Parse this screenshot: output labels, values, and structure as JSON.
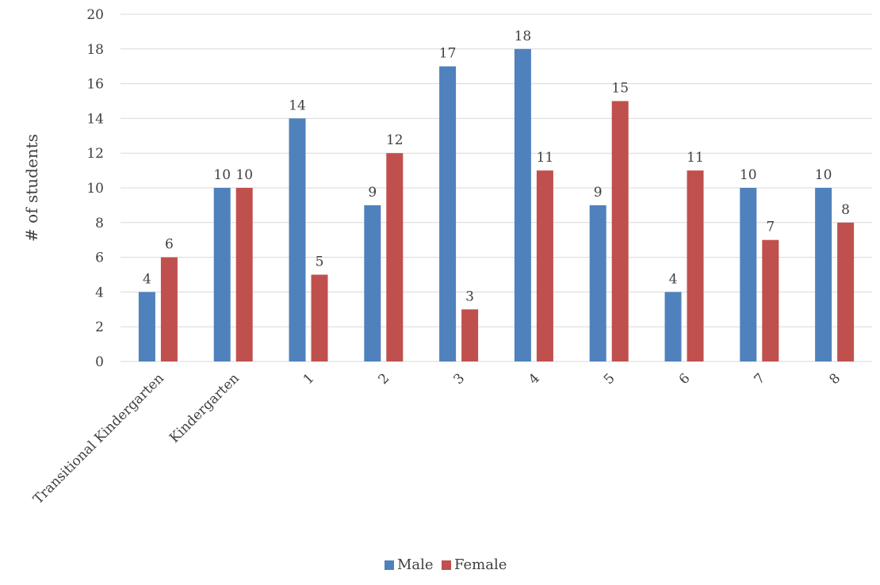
{
  "chart_data": {
    "type": "bar",
    "categories": [
      "Transitional Kindergarten",
      "Kindergarten",
      "1",
      "2",
      "3",
      "4",
      "5",
      "6",
      "7",
      "8"
    ],
    "series": [
      {
        "name": "Male",
        "values": [
          4,
          10,
          14,
          9,
          17,
          18,
          9,
          4,
          10,
          10
        ],
        "color": "#4f81bd"
      },
      {
        "name": "Female",
        "values": [
          6,
          10,
          5,
          12,
          3,
          11,
          15,
          11,
          7,
          8
        ],
        "color": "#c0504d"
      }
    ],
    "title": "",
    "xlabel": "",
    "ylabel": "# of students",
    "ylim": [
      0,
      20
    ],
    "ytick_step": 2,
    "grid": true,
    "legend_position": "bottom",
    "gridline_color": "#d9d9d9"
  }
}
